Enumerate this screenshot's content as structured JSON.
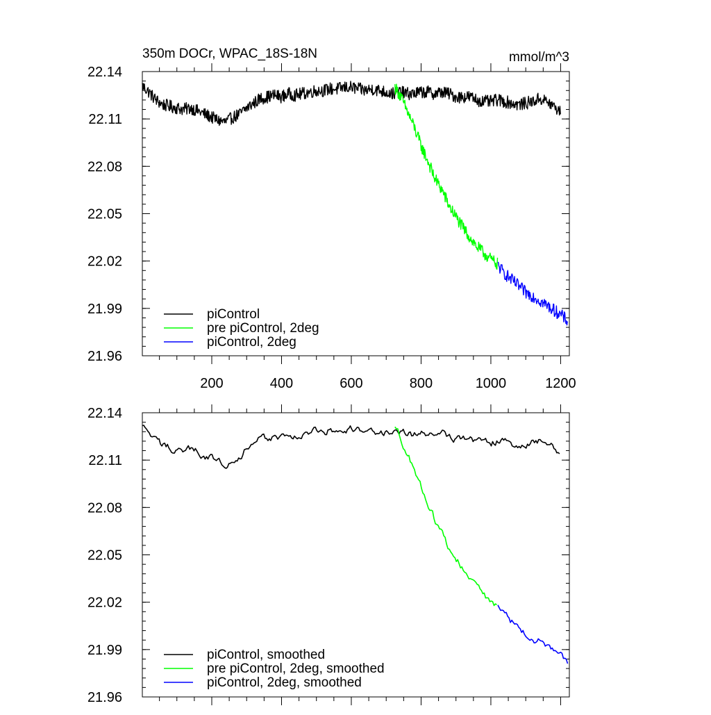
{
  "chart_data": [
    {
      "type": "line",
      "title": "350m DOCr, WPAC_18S-18N",
      "units": "mmol/m^3",
      "xlabel": "",
      "ylabel": "",
      "xlim": [
        1,
        1225
      ],
      "ylim": [
        21.96,
        22.14
      ],
      "x_ticks": [
        200,
        400,
        600,
        800,
        1000,
        1200
      ],
      "x_tick_labels": [
        "200",
        "400",
        "600",
        "800",
        "1000",
        "1200"
      ],
      "y_ticks": [
        21.96,
        21.99,
        22.02,
        22.05,
        22.08,
        22.11,
        22.14
      ],
      "y_tick_labels": [
        "21.96",
        "21.99",
        "22.02",
        "22.05",
        "22.08",
        "22.11",
        "22.14"
      ],
      "legend_position": "bottom-left",
      "series": [
        {
          "name": "piControl",
          "color": "#000000",
          "x": [
            1,
            20,
            40,
            60,
            80,
            100,
            120,
            140,
            160,
            180,
            200,
            220,
            240,
            260,
            280,
            300,
            320,
            340,
            360,
            380,
            400,
            420,
            440,
            460,
            480,
            500,
            520,
            540,
            560,
            580,
            600,
            620,
            640,
            660,
            680,
            700,
            720,
            740,
            760,
            780,
            800,
            820,
            840,
            860,
            880,
            900,
            920,
            940,
            960,
            980,
            1000,
            1020,
            1040,
            1060,
            1080,
            1100,
            1120,
            1140,
            1160,
            1180,
            1200
          ],
          "values": [
            22.131,
            22.127,
            22.122,
            22.119,
            22.118,
            22.117,
            22.116,
            22.117,
            22.115,
            22.113,
            22.111,
            22.109,
            22.108,
            22.111,
            22.113,
            22.117,
            22.12,
            22.123,
            22.124,
            22.125,
            22.124,
            22.126,
            22.125,
            22.126,
            22.127,
            22.128,
            22.128,
            22.129,
            22.129,
            22.13,
            22.13,
            22.129,
            22.128,
            22.129,
            22.128,
            22.127,
            22.126,
            22.127,
            22.126,
            22.126,
            22.127,
            22.127,
            22.126,
            22.127,
            22.126,
            22.124,
            22.124,
            22.124,
            22.122,
            22.121,
            22.121,
            22.122,
            22.121,
            22.12,
            22.119,
            22.12,
            22.121,
            22.123,
            22.121,
            22.118,
            22.114
          ]
        },
        {
          "name": "pre piControl, 2deg",
          "color": "#00ff00",
          "x": [
            725,
            740,
            760,
            780,
            800,
            820,
            840,
            860,
            880,
            900,
            920,
            940,
            960,
            980,
            1000,
            1020
          ],
          "values": [
            22.13,
            22.125,
            22.115,
            22.105,
            22.093,
            22.083,
            22.072,
            22.065,
            22.055,
            22.048,
            22.041,
            22.035,
            22.029,
            22.025,
            22.021,
            22.018
          ]
        },
        {
          "name": "piControl, 2deg",
          "color": "#0000ff",
          "x": [
            1020,
            1040,
            1060,
            1080,
            1100,
            1120,
            1140,
            1160,
            1180,
            1200,
            1220
          ],
          "values": [
            22.017,
            22.012,
            22.008,
            22.004,
            22.0,
            21.998,
            21.995,
            21.992,
            21.989,
            21.986,
            21.982
          ]
        }
      ]
    },
    {
      "type": "line",
      "title": "",
      "xlabel": "",
      "ylabel": "",
      "xlim": [
        1,
        1225
      ],
      "ylim": [
        21.96,
        22.14
      ],
      "x_ticks": [
        200,
        400,
        600,
        800,
        1000,
        1200
      ],
      "x_tick_labels": [],
      "y_ticks": [
        21.96,
        21.99,
        22.02,
        22.05,
        22.08,
        22.11,
        22.14
      ],
      "y_tick_labels": [
        "21.96",
        "21.99",
        "22.02",
        "22.05",
        "22.08",
        "22.11",
        "22.14"
      ],
      "legend_position": "bottom-left",
      "series": [
        {
          "name": "piControl, smoothed",
          "color": "#000000",
          "x": [
            1,
            20,
            40,
            60,
            80,
            100,
            120,
            140,
            160,
            180,
            200,
            220,
            240,
            260,
            280,
            300,
            320,
            340,
            360,
            380,
            400,
            420,
            440,
            460,
            480,
            500,
            520,
            540,
            560,
            580,
            600,
            620,
            640,
            660,
            680,
            700,
            720,
            740,
            760,
            780,
            800,
            820,
            840,
            860,
            880,
            900,
            920,
            940,
            960,
            980,
            1000,
            1020,
            1040,
            1060,
            1080,
            1100,
            1120,
            1140,
            1160,
            1180,
            1200
          ],
          "values": [
            22.131,
            22.127,
            22.122,
            22.119,
            22.118,
            22.117,
            22.116,
            22.117,
            22.115,
            22.113,
            22.111,
            22.109,
            22.108,
            22.111,
            22.113,
            22.117,
            22.12,
            22.123,
            22.124,
            22.125,
            22.124,
            22.126,
            22.125,
            22.126,
            22.127,
            22.128,
            22.128,
            22.129,
            22.129,
            22.13,
            22.13,
            22.129,
            22.128,
            22.129,
            22.128,
            22.127,
            22.126,
            22.127,
            22.126,
            22.126,
            22.127,
            22.127,
            22.126,
            22.127,
            22.126,
            22.124,
            22.124,
            22.124,
            22.122,
            22.121,
            22.121,
            22.122,
            22.121,
            22.12,
            22.119,
            22.12,
            22.121,
            22.123,
            22.121,
            22.118,
            22.114
          ]
        },
        {
          "name": "pre piControl, 2deg, smoothed",
          "color": "#00ff00",
          "x": [
            725,
            740,
            760,
            780,
            800,
            820,
            840,
            860,
            880,
            900,
            920,
            940,
            960,
            980,
            1000,
            1020
          ],
          "values": [
            22.13,
            22.125,
            22.115,
            22.105,
            22.093,
            22.083,
            22.072,
            22.065,
            22.055,
            22.048,
            22.041,
            22.035,
            22.029,
            22.025,
            22.021,
            22.018
          ]
        },
        {
          "name": "piControl, 2deg, smoothed",
          "color": "#0000ff",
          "x": [
            1020,
            1040,
            1060,
            1080,
            1100,
            1120,
            1140,
            1160,
            1180,
            1200,
            1220
          ],
          "values": [
            22.017,
            22.012,
            22.008,
            22.004,
            22.0,
            21.998,
            21.995,
            21.992,
            21.989,
            21.986,
            21.982
          ]
        }
      ]
    }
  ]
}
